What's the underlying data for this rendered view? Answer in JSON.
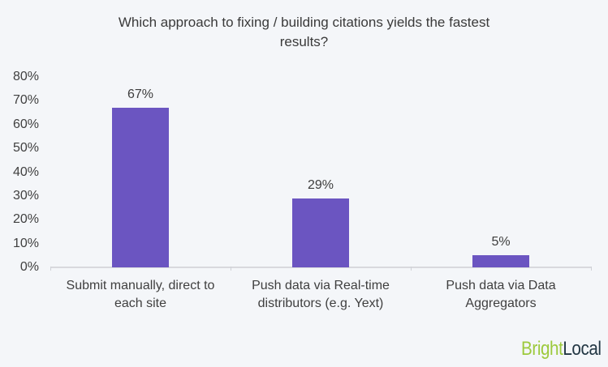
{
  "title_lines": [
    "Which approach to fixing / building citations yields the fastest",
    "results?"
  ],
  "chart_data": {
    "type": "bar",
    "title": "Which approach to fixing / building citations yields the fastest results?",
    "categories": [
      "Submit manually, direct to each site",
      "Push data via Real-time distributors (e.g. Yext)",
      "Push data via Data Aggregators"
    ],
    "values": [
      67,
      29,
      5
    ],
    "value_labels": [
      "67%",
      "29%",
      "5%"
    ],
    "xlabel": "",
    "ylabel": "",
    "ylim": [
      0,
      80
    ],
    "ytick_values": [
      0,
      10,
      20,
      30,
      40,
      50,
      60,
      70,
      80
    ],
    "ytick_labels": [
      "0%",
      "10%",
      "20%",
      "30%",
      "40%",
      "50%",
      "60%",
      "70%",
      "80%"
    ],
    "grid": false,
    "legend": false,
    "bar_color": "#6b55c1"
  },
  "colors": {
    "background": "#f4f6f9",
    "bar": "#6b55c1",
    "axis_line": "#d8d9dd",
    "text": "#3c3c3c",
    "logo_green": "#9cc93c",
    "logo_dark": "#233744"
  },
  "branding": {
    "logo_part1": "Bright",
    "logo_part2": "Local"
  }
}
